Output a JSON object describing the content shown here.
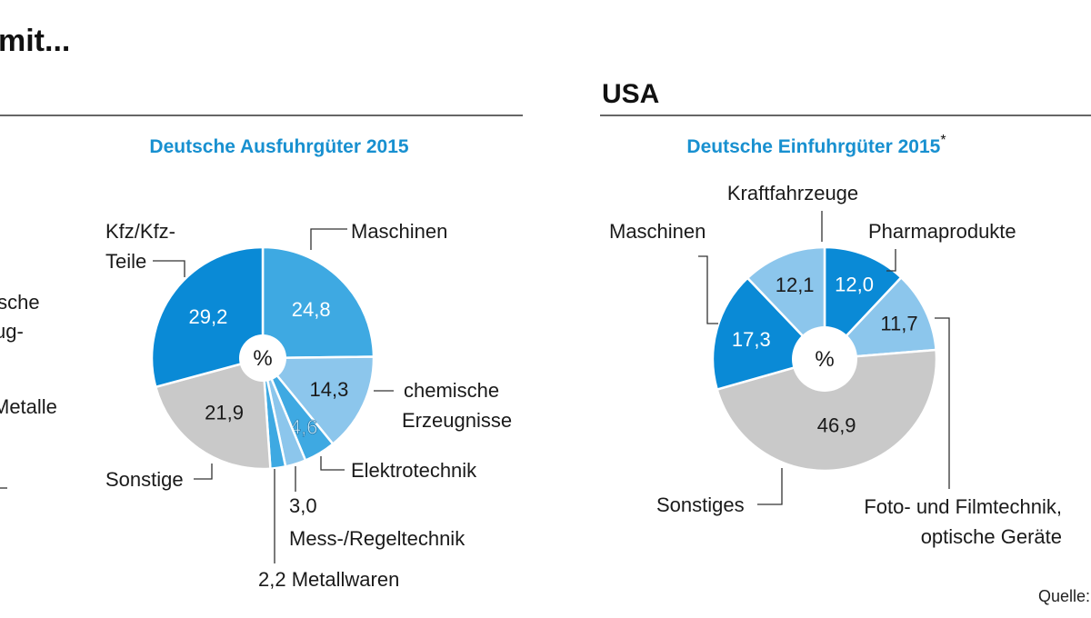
{
  "header": {
    "left_title_fragment": "mit...",
    "usa_title": "USA",
    "source": "Quelle:"
  },
  "cropped_left_labels": [
    "nische",
    "ug-",
    "Metalle"
  ],
  "colors": {
    "dark_blue": "#0a8ad6",
    "medium_blue": "#3ea9e2",
    "light_blue": "#8cc6ec",
    "grey": "#c9c9c9",
    "title_blue": "#1890d0"
  },
  "chart_data": [
    {
      "type": "pie",
      "title": "Deutsche Ausfuhrgüter 2015",
      "center_label": "%",
      "slices": [
        {
          "label": "Maschinen",
          "value": 24.8,
          "display": "24,8",
          "color": "#3ea9e2"
        },
        {
          "label": "chemische Erzeugnisse",
          "label_lines": [
            "chemische",
            "Erzeugnisse"
          ],
          "value": 14.3,
          "display": "14,3",
          "color": "#8cc6ec"
        },
        {
          "label": "Elektrotechnik",
          "value": 4.6,
          "display": "4,6",
          "color": "#3ea9e2"
        },
        {
          "label": "Mess-/Regeltechnik",
          "value": 3.0,
          "display": "3,0",
          "color": "#8cc6ec"
        },
        {
          "label": "Metallwaren",
          "value": 2.2,
          "display": "2,2 Metallwaren",
          "color": "#3ea9e2"
        },
        {
          "label": "Sonstige",
          "value": 21.9,
          "display": "21,9",
          "color": "#c9c9c9"
        },
        {
          "label": "Kfz/Kfz-Teile",
          "label_lines": [
            "Kfz/Kfz-",
            "Teile"
          ],
          "value": 29.2,
          "display": "29,2",
          "color": "#0a8ad6"
        }
      ]
    },
    {
      "type": "pie",
      "title": "Deutsche Einfuhrgüter 2015",
      "title_mark": "*",
      "center_label": "%",
      "slices": [
        {
          "label": "Pharmaprodukte",
          "value": 12.0,
          "display": "12,0",
          "color": "#0a8ad6"
        },
        {
          "label": "Foto- und Filmtechnik, optische Geräte",
          "label_lines": [
            "Foto- und Filmtechnik,",
            "optische Geräte"
          ],
          "value": 11.7,
          "display": "11,7",
          "color": "#8cc6ec"
        },
        {
          "label": "Sonstiges",
          "value": 46.9,
          "display": "46,9",
          "color": "#c9c9c9"
        },
        {
          "label": "Maschinen",
          "value": 17.3,
          "display": "17,3",
          "color": "#0a8ad6"
        },
        {
          "label": "Kraftfahrzeuge",
          "value": 12.1,
          "display": "12,1",
          "color": "#8cc6ec"
        }
      ]
    }
  ]
}
